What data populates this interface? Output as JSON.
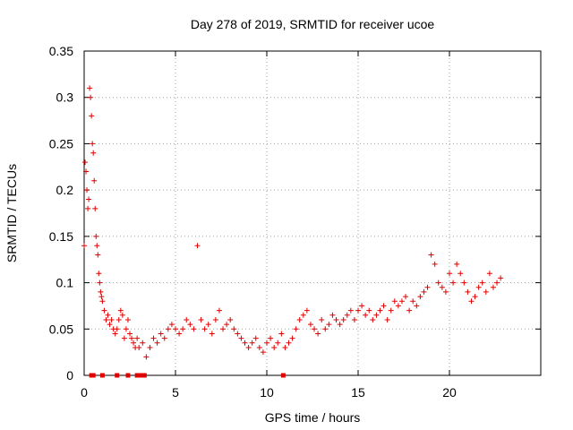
{
  "chart_data": {
    "type": "scatter",
    "title": "Day 278 of 2019, SRMTID for receiver ucoe",
    "xlabel": "GPS time / hours",
    "ylabel": "SRMTID / TECUs",
    "xlim": [
      0,
      25
    ],
    "ylim": [
      0,
      0.35
    ],
    "xticks": [
      0,
      5,
      10,
      15,
      20
    ],
    "yticks": [
      0,
      0.05,
      0.1,
      0.15,
      0.2,
      0.25,
      0.3,
      0.35
    ],
    "ytick_labels": [
      "0",
      "0.05",
      "0.1",
      "0.15",
      "0.2",
      "0.25",
      "0.3",
      "0.35"
    ],
    "grid": true,
    "marker": "+",
    "color": "#e00000",
    "series": [
      {
        "name": "SRMTID",
        "x": [
          0.0,
          0.05,
          0.1,
          0.15,
          0.2,
          0.25,
          0.3,
          0.35,
          0.4,
          0.45,
          0.5,
          0.55,
          0.6,
          0.65,
          0.7,
          0.75,
          0.8,
          0.85,
          0.9,
          0.95,
          1.0,
          1.1,
          1.2,
          1.3,
          1.4,
          1.5,
          1.6,
          1.7,
          1.8,
          1.9,
          2.0,
          2.1,
          2.2,
          2.3,
          2.4,
          2.5,
          2.6,
          2.7,
          2.8,
          2.9,
          3.0,
          3.2,
          3.4,
          3.6,
          3.8,
          4.0,
          4.2,
          4.4,
          4.6,
          4.8,
          5.0,
          5.2,
          5.4,
          5.6,
          5.8,
          6.0,
          6.2,
          6.4,
          6.6,
          6.8,
          7.0,
          7.2,
          7.4,
          7.6,
          7.8,
          8.0,
          8.2,
          8.4,
          8.6,
          8.8,
          9.0,
          9.2,
          9.4,
          9.6,
          9.8,
          10.0,
          10.2,
          10.4,
          10.6,
          10.8,
          11.0,
          11.2,
          11.4,
          11.6,
          11.8,
          12.0,
          12.2,
          12.4,
          12.6,
          12.8,
          13.0,
          13.2,
          13.4,
          13.6,
          13.8,
          14.0,
          14.2,
          14.4,
          14.6,
          14.8,
          15.0,
          15.2,
          15.4,
          15.6,
          15.8,
          16.0,
          16.2,
          16.4,
          16.6,
          16.8,
          17.0,
          17.2,
          17.4,
          17.6,
          17.8,
          18.0,
          18.2,
          18.4,
          18.6,
          18.8,
          19.0,
          19.2,
          19.4,
          19.6,
          19.8,
          20.0,
          20.2,
          20.4,
          20.6,
          20.8,
          21.0,
          21.2,
          21.4,
          21.6,
          21.8,
          22.0,
          22.2,
          22.4,
          22.6,
          22.8
        ],
        "y": [
          0.14,
          0.23,
          0.22,
          0.2,
          0.18,
          0.19,
          0.31,
          0.3,
          0.28,
          0.25,
          0.24,
          0.21,
          0.18,
          0.15,
          0.14,
          0.13,
          0.11,
          0.1,
          0.09,
          0.085,
          0.08,
          0.07,
          0.06,
          0.065,
          0.055,
          0.06,
          0.05,
          0.045,
          0.05,
          0.06,
          0.07,
          0.065,
          0.04,
          0.05,
          0.06,
          0.045,
          0.04,
          0.035,
          0.03,
          0.04,
          0.03,
          0.035,
          0.02,
          0.03,
          0.04,
          0.035,
          0.045,
          0.04,
          0.05,
          0.055,
          0.05,
          0.045,
          0.05,
          0.06,
          0.055,
          0.05,
          0.14,
          0.06,
          0.05,
          0.055,
          0.045,
          0.06,
          0.07,
          0.05,
          0.055,
          0.06,
          0.05,
          0.045,
          0.04,
          0.035,
          0.03,
          0.035,
          0.04,
          0.03,
          0.025,
          0.035,
          0.04,
          0.03,
          0.035,
          0.045,
          0.03,
          0.035,
          0.04,
          0.05,
          0.06,
          0.065,
          0.07,
          0.055,
          0.05,
          0.045,
          0.06,
          0.05,
          0.055,
          0.065,
          0.06,
          0.055,
          0.06,
          0.065,
          0.07,
          0.06,
          0.07,
          0.075,
          0.065,
          0.07,
          0.06,
          0.065,
          0.07,
          0.075,
          0.06,
          0.07,
          0.08,
          0.075,
          0.08,
          0.085,
          0.07,
          0.08,
          0.075,
          0.085,
          0.09,
          0.095,
          0.13,
          0.12,
          0.1,
          0.095,
          0.09,
          0.11,
          0.1,
          0.12,
          0.11,
          0.1,
          0.09,
          0.08,
          0.085,
          0.095,
          0.1,
          0.09,
          0.11,
          0.095,
          0.1,
          0.105
        ],
        "zero_x": [
          0.4,
          0.5,
          1.0,
          1.8,
          2.4,
          2.9,
          3.1,
          3.3,
          10.9
        ]
      }
    ]
  }
}
